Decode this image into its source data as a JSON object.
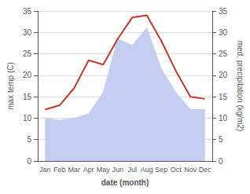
{
  "chart_data": {
    "type": "line",
    "xlabel": "date (month)",
    "ylabel": "max temp (C)",
    "y2label": "med. precipitation (kg/m2)",
    "categories": [
      "Jan",
      "Feb",
      "Mar",
      "Apr",
      "May",
      "Jun",
      "Jul",
      "Aug",
      "Sep",
      "Oct",
      "Nov",
      "Dec"
    ],
    "series": [
      {
        "type": "area",
        "axis": "y2",
        "color": "#c5cdf0",
        "values": [
          10,
          9.5,
          10,
          11,
          16,
          28.5,
          27,
          31,
          21.5,
          16,
          12,
          12
        ]
      },
      {
        "type": "line",
        "color": "#c0392b",
        "values": [
          12,
          13,
          17,
          23.5,
          22.5,
          28.5,
          33.5,
          34,
          28,
          21,
          15,
          14.5
        ]
      }
    ],
    "ylim": [
      0,
      35
    ],
    "yticks": [
      0,
      5,
      10,
      15,
      20,
      25,
      30,
      35
    ],
    "y2lim": [
      0,
      35
    ],
    "y2ticks": [
      0,
      5,
      10,
      15,
      20,
      25,
      30,
      35
    ],
    "grid": true
  }
}
